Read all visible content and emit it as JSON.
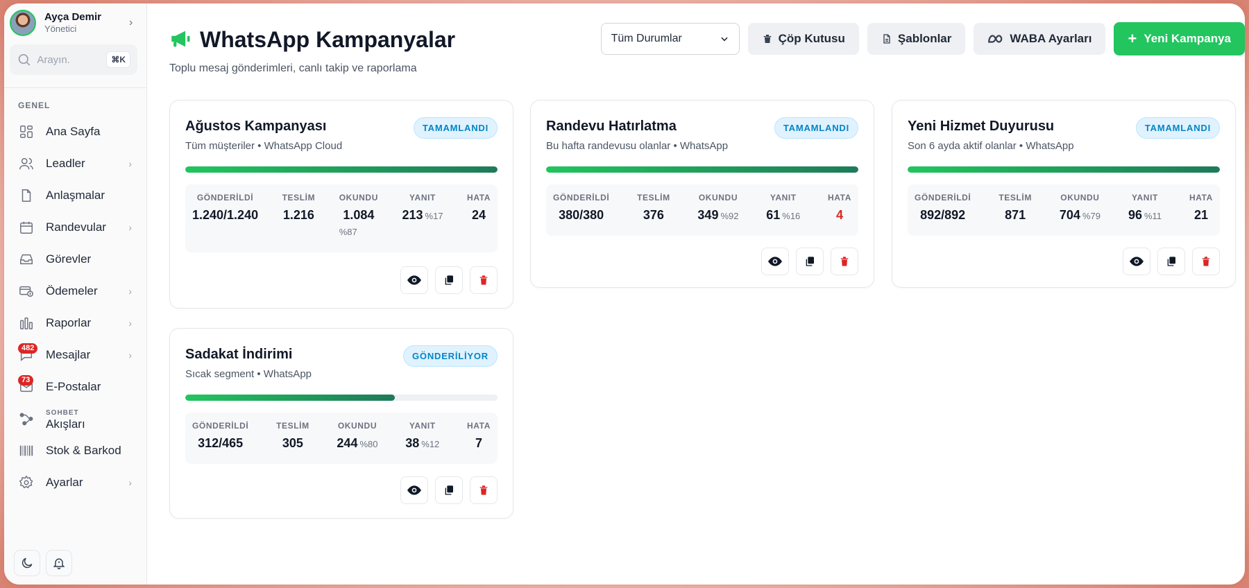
{
  "user": {
    "name": "Ayça Demir",
    "role": "Yönetici"
  },
  "search": {
    "placeholder": "Arayın.",
    "shortcut": "⌘K"
  },
  "sidebar": {
    "section": "GENEL",
    "items": [
      {
        "label": "Ana Sayfa",
        "icon": "grid-icon"
      },
      {
        "label": "Leadler",
        "icon": "users-icon"
      },
      {
        "label": "Anlaşmalar",
        "icon": "file-icon"
      },
      {
        "label": "Randevular",
        "icon": "calendar-icon"
      },
      {
        "label": "Görevler",
        "icon": "inbox-icon"
      },
      {
        "label": "Ödemeler",
        "icon": "payment-icon"
      },
      {
        "label": "Raporlar",
        "icon": "bar-chart-icon"
      },
      {
        "label": "Mesajlar",
        "icon": "message-icon",
        "badge": "482"
      },
      {
        "label": "E-Postalar",
        "icon": "mail-icon",
        "badge": "73"
      },
      {
        "label_small": "SOHBET",
        "label": "Akışları",
        "icon": "flow-icon"
      },
      {
        "label": "Stok & Barkod",
        "icon": "barcode-icon"
      },
      {
        "label": "Ayarlar",
        "icon": "gear-icon"
      }
    ]
  },
  "header": {
    "title": "WhatsApp Kampanyalar",
    "subtitle": "Toplu mesaj gönderimleri, canlı takip ve raporlama",
    "filter_value": "Tüm Durumlar",
    "trash_label": "Çöp Kutusu",
    "templates_label": "Şablonlar",
    "waba_label": "WABA Ayarları",
    "new_label": "Yeni Kampanya"
  },
  "stat_labels": {
    "sent": "GÖNDERİLDİ",
    "delivered": "TESLİM",
    "read": "OKUNDU",
    "reply": "YANIT",
    "error": "HATA"
  },
  "campaigns": [
    {
      "title": "Ağustos Kampanyası",
      "subtitle": "Tüm müşteriler • WhatsApp Cloud",
      "status": "TAMAMLANDI",
      "progress": 1.0,
      "sent": "1.240/1.240",
      "delivered": "1.216",
      "read": "1.084",
      "read_pct": "%87",
      "reply": "213",
      "reply_pct": "%17",
      "error": "24"
    },
    {
      "title": "Randevu Hatırlatma",
      "subtitle": "Bu hafta randevusu olanlar • WhatsApp",
      "status": "TAMAMLANDI",
      "progress": 1.0,
      "sent": "380/380",
      "delivered": "376",
      "read": "349",
      "read_pct": "%92",
      "reply": "61",
      "reply_pct": "%16",
      "error": "4"
    },
    {
      "title": "Yeni Hizmet Duyurusu",
      "subtitle": "Son 6 ayda aktif olanlar • WhatsApp",
      "status": "TAMAMLANDI",
      "progress": 1.0,
      "sent": "892/892",
      "delivered": "871",
      "read": "704",
      "read_pct": "%79",
      "reply": "96",
      "reply_pct": "%11",
      "error": "21"
    },
    {
      "title": "Sadakat İndirimi",
      "subtitle": "Sıcak segment • WhatsApp",
      "status": "GÖNDERİLİYOR",
      "progress": 0.67,
      "sent": "312/465",
      "delivered": "305",
      "read": "244",
      "read_pct": "%80",
      "reply": "38",
      "reply_pct": "%12",
      "error": "7"
    }
  ],
  "colors": {
    "accent": "#22c55e",
    "error": "#dc2626",
    "status_bg": "#e0f2fe",
    "status_text": "#0284c7"
  }
}
